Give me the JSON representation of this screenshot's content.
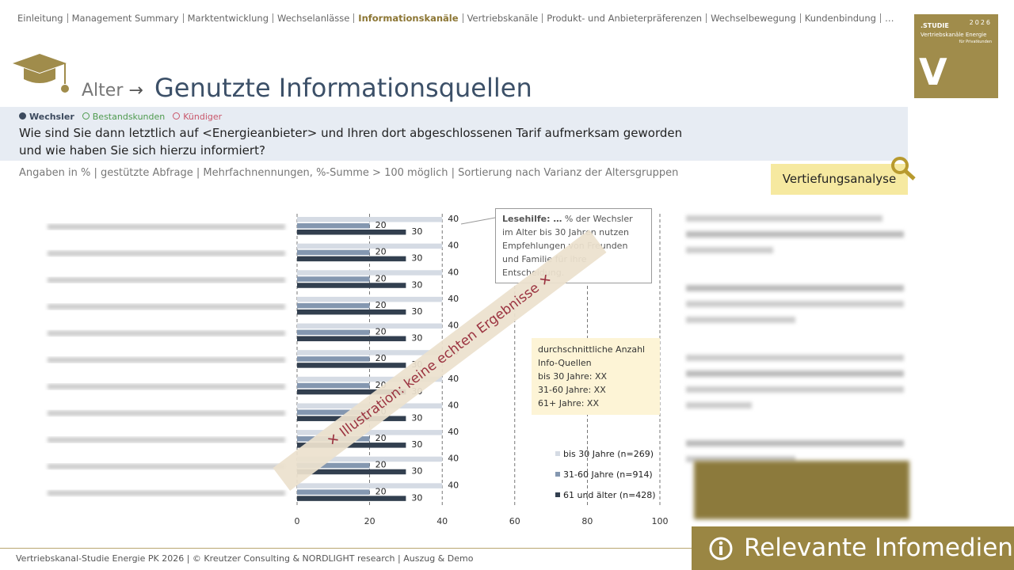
{
  "header": {
    "nav": [
      "Einleitung",
      "Management Summary",
      "Marktentwicklung",
      "Wechselanlässe",
      "Informationskanäle",
      "Vertriebskanäle",
      "Produkt- und Anbieterpräferenzen",
      "Wechselbewegung",
      "Kundenbindung",
      "…"
    ],
    "nav_active": 4,
    "kicker": "Alter",
    "title": "Genutzte Informationsquellen",
    "segments": [
      {
        "name": "Wechsler",
        "color": "#3c4a5e"
      },
      {
        "name": "Bestandskunden",
        "color": "#4e9a4e"
      },
      {
        "name": "Kündiger",
        "color": "#c9566a"
      }
    ],
    "question": "Wie sind Sie dann letztlich auf <Energieanbieter> und Ihren dort abgeschlossenen Tarif aufmerksam geworden und wie haben Sie sich hierzu informiert?",
    "note": "Angaben in % | gestützte Abfrage | Mehrfachnennungen, %-Summe > 100 möglich | Sortierung nach Varianz der Altersgruppen",
    "button": "Vertiefungsanalyse"
  },
  "logo": {
    "study": ".STUDIE",
    "year": "2026",
    "line1": "Vertriebskanäle Energie",
    "line2": "für Privatkunden",
    "letter": "V"
  },
  "chart_data": {
    "type": "bar",
    "orientation": "horizontal",
    "categories": [
      null,
      null,
      null,
      null,
      null,
      null,
      null,
      null,
      null,
      null,
      null
    ],
    "series": [
      {
        "name": "bis 30 Jahre (n=269)",
        "color": "#d5dbe4",
        "values": [
          40,
          40,
          40,
          40,
          40,
          40,
          40,
          40,
          40,
          40,
          40
        ]
      },
      {
        "name": "31-60 Jahre (n=914)",
        "color": "#8497b0",
        "values": [
          20,
          20,
          20,
          20,
          20,
          20,
          20,
          20,
          20,
          20,
          20
        ]
      },
      {
        "name": "61 und älter (n=428)",
        "color": "#323f4f",
        "values": [
          30,
          30,
          30,
          30,
          30,
          30,
          30,
          30,
          30,
          30,
          30
        ]
      }
    ],
    "xlim": [
      0,
      100
    ],
    "xticks": [
      0,
      20,
      40,
      60,
      80,
      100
    ],
    "grid": true,
    "reading_aid": {
      "label": "Lesehilfe: …",
      "text": "% der Wechsler im Alter bis 30 Jahren nutzen Empfehlungen von Freunden und Familie für ihre Entscheidung."
    },
    "average_box": [
      "durchschnittliche Anzahl Info-Quellen",
      "bis 30 Jahre: XX",
      "31-60 Jahre: XX",
      "61+ Jahre: XX"
    ],
    "watermark": "✕ Illustration: keine echten Ergebnisse ✕"
  },
  "footer": {
    "text": "Vertriebskanal-Studie Energie PK 2026 | © Kreutzer Consulting & NORDLIGHT research | Auszug & Demo",
    "badge": "Relevante Infomedien"
  }
}
